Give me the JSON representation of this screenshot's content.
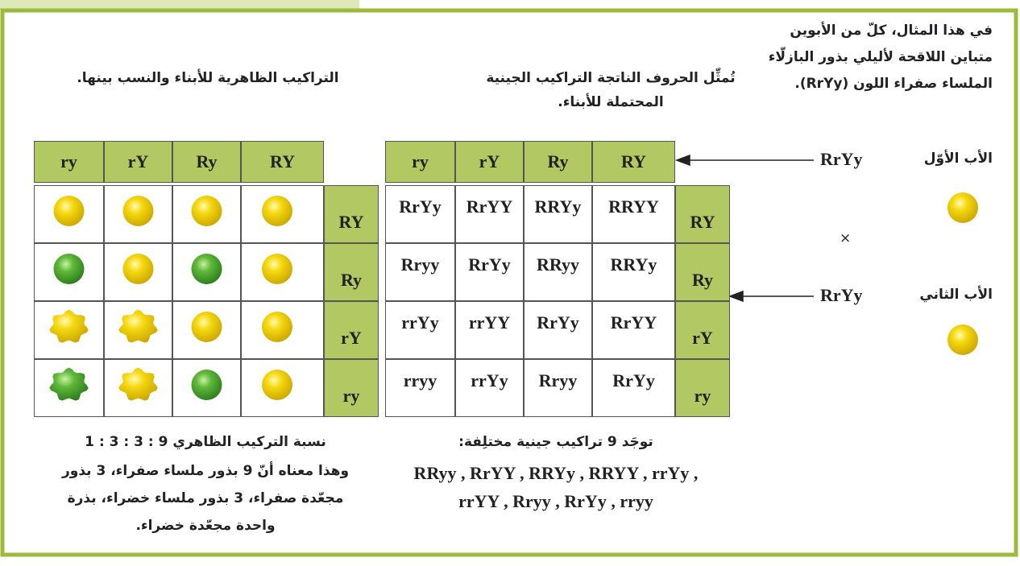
{
  "intro": {
    "lines": [
      "في هذا المثال، كلّ من الأبوين",
      "متباين اللاقحة لأليلي بذور البازلّاء",
      "الملساء صفراء اللون (RrYy)."
    ]
  },
  "genotype_caption": {
    "lines": [
      "تُمثِّل الحروف الناتجة التراكيب الجينية",
      "المحتملة للأبناء."
    ]
  },
  "phenotype_caption": {
    "lines": [
      "التراكيب الظاهرية للأبناء والنسب بينها."
    ]
  },
  "parents": [
    {
      "label": "الأب الأوّل",
      "genotype": "RrYy"
    },
    {
      "label": "الأب الثاني",
      "genotype": "RrYy"
    }
  ],
  "cross_symbol": "×",
  "genotype_table": {
    "columns": [
      "ry",
      "rY",
      "Ry",
      "RY"
    ],
    "row_headers": [
      "RY",
      "Ry",
      "rY",
      "ry"
    ],
    "rows": [
      [
        "RrYy",
        "RrYY",
        "RRYy",
        "RRYY"
      ],
      [
        "Rryy",
        "RrYy",
        "RRyy",
        "RRYy"
      ],
      [
        "rrYy",
        "rrYY",
        "RrYy",
        "RrYY"
      ],
      [
        "rryy",
        "rrYy",
        "Rryy",
        "RrYy"
      ]
    ]
  },
  "phenotype_table": {
    "columns": [
      "ry",
      "rY",
      "Ry",
      "RY"
    ],
    "row_headers": [
      "RY",
      "Ry",
      "rY",
      "ry"
    ]
  },
  "phenotype_note": {
    "lines": [
      "نسبة التركيب الظاهري 9 : 3 : 3 : 1",
      "وهذا معناه أنّ 9 بذور ملساء صفراء، 3 بذور",
      "مجعّدة صفراء، 3 بذور ملساء خضراء، بذرة",
      "واحدة مجعّدة خضراء."
    ]
  },
  "genotype_note": {
    "lines": [
      "توجَد 9 تراكيب جينية مختلِفة:",
      "RRyy , RrYY , RRYy , RRYY , rrYy ,",
      "rrYY , Rryy , RrYy , rryy"
    ]
  }
}
